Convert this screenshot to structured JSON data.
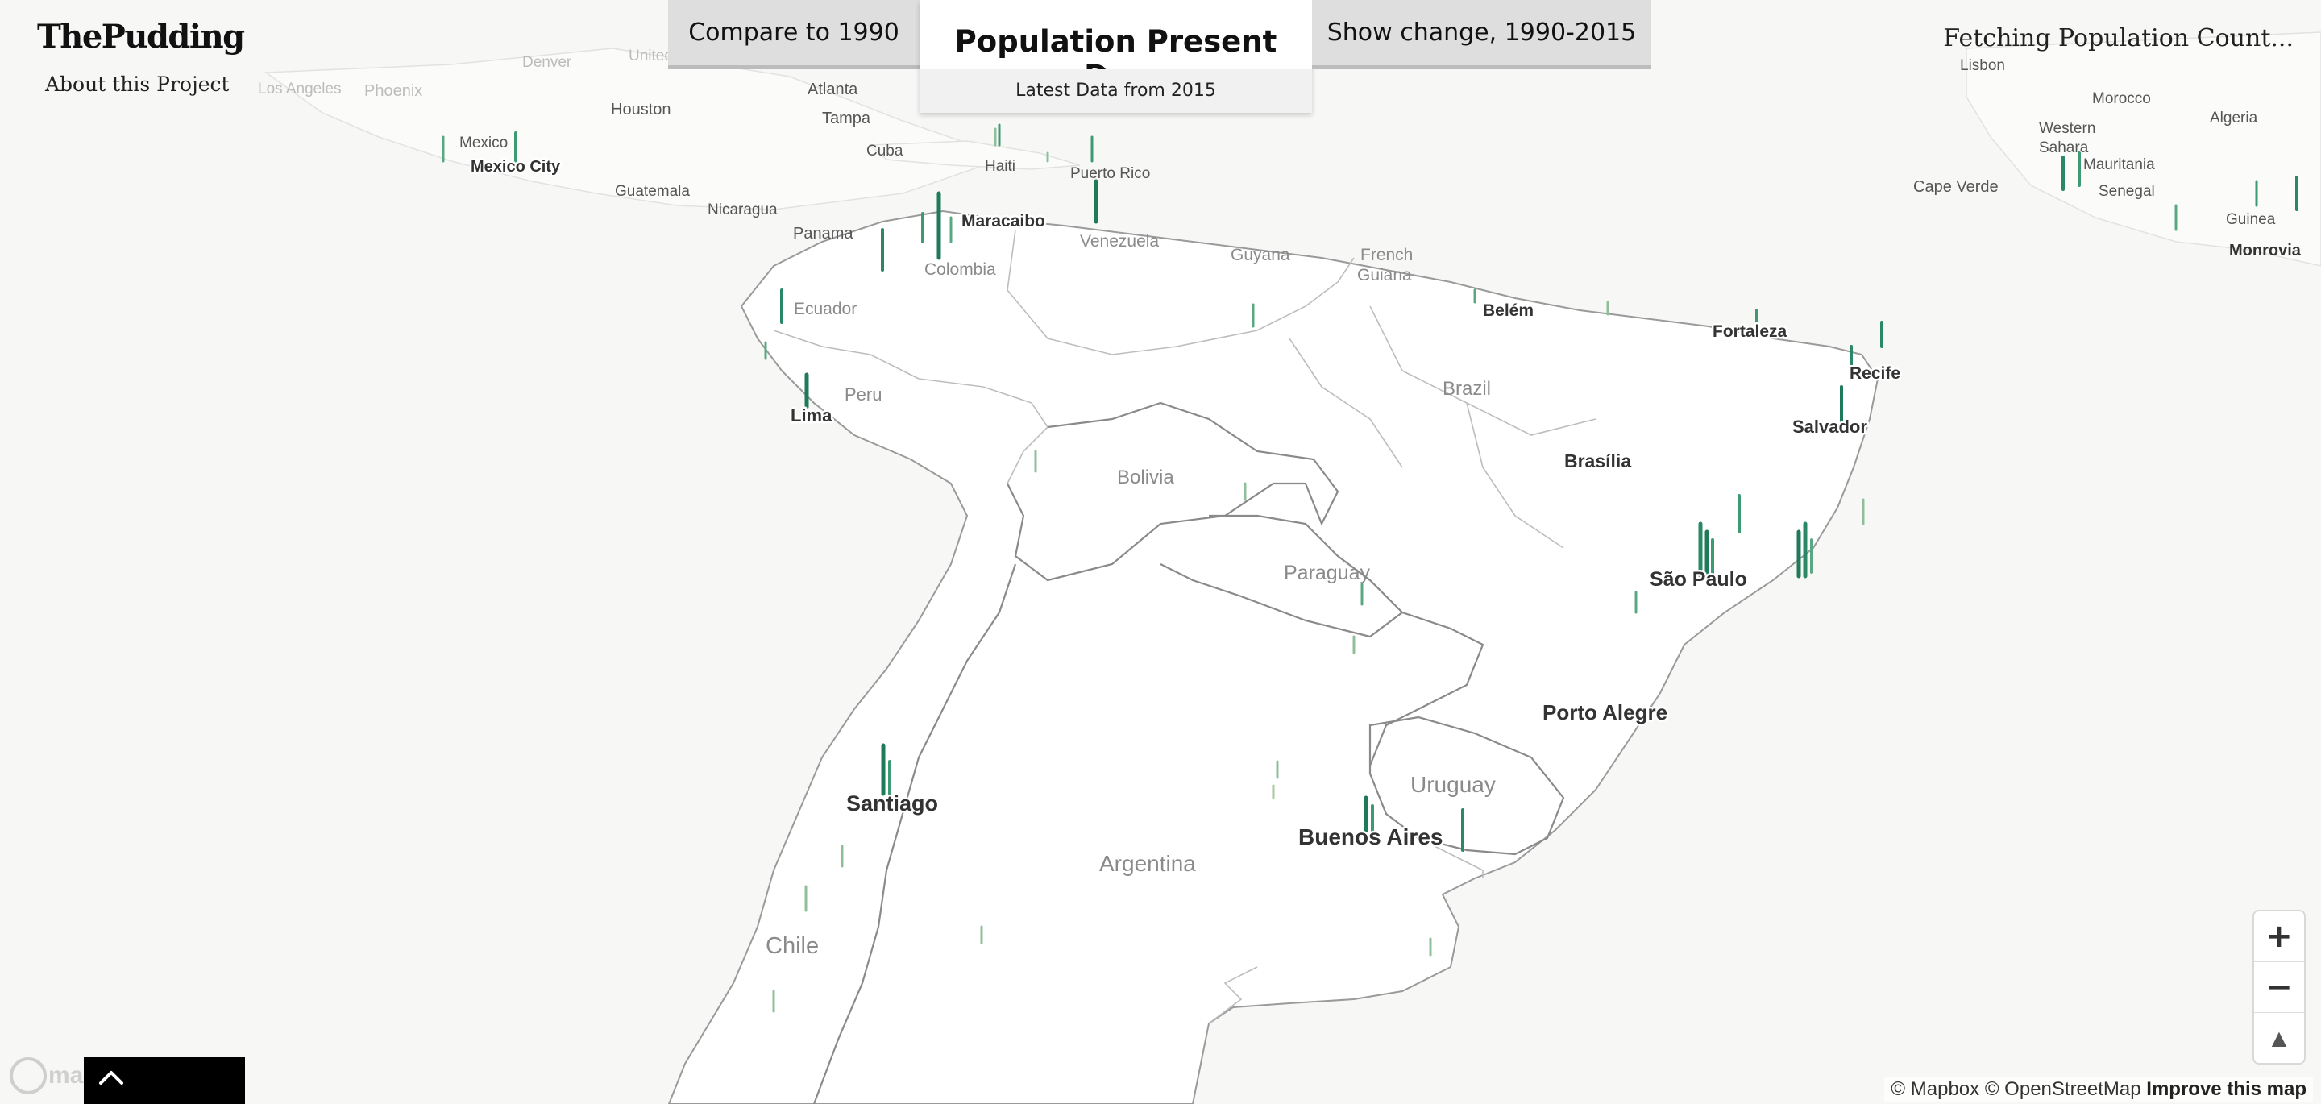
{
  "header": {
    "logo": "ThePudding",
    "about_link": "About this Project",
    "status": "Fetching Population Count..."
  },
  "toggle": {
    "left_label": "Compare to 1990",
    "active_title": "Population Present Day",
    "active_subtitle": "Latest Data from 2015",
    "right_label": "Show change, 1990-2015"
  },
  "map": {
    "countries": [
      "Brazil",
      "Bolivia",
      "Peru",
      "Paraguay",
      "Uruguay",
      "Argentina",
      "Chile",
      "Colombia",
      "Venezuela",
      "Guyana",
      "French Guiana",
      "Ecuador",
      "Panama",
      "Nicaragua",
      "Guatemala",
      "Mexico",
      "Cuba",
      "Haiti",
      "Puerto Rico",
      "Cape Verde",
      "Mauritania",
      "Senegal",
      "Guinea",
      "Algeria",
      "Western Sahara",
      "Morocco"
    ],
    "cities": [
      "São Paulo",
      "Buenos Aires",
      "Santiago",
      "Lima",
      "Porto Alegre",
      "Brasília",
      "Salvador",
      "Recife",
      "Fortaleza",
      "Belém",
      "Maracaibo",
      "Mexico City",
      "Houston",
      "Tampa",
      "Atlanta",
      "Denver",
      "Phoenix",
      "Los Angeles",
      "Lisbon",
      "Monrovia"
    ],
    "faded_labels": [
      "United States"
    ],
    "spike_color_light": "#c8d9b0",
    "spike_color_dark": "#1f7a5a"
  },
  "controls": {
    "zoom_in": "+",
    "zoom_out": "−",
    "compass": "▲"
  },
  "attribution": {
    "mapbox": "© Mapbox",
    "osm": "© OpenStreetMap",
    "improve": "Improve this map"
  },
  "footer": {
    "mapbox_logo_text": "mapbox"
  }
}
